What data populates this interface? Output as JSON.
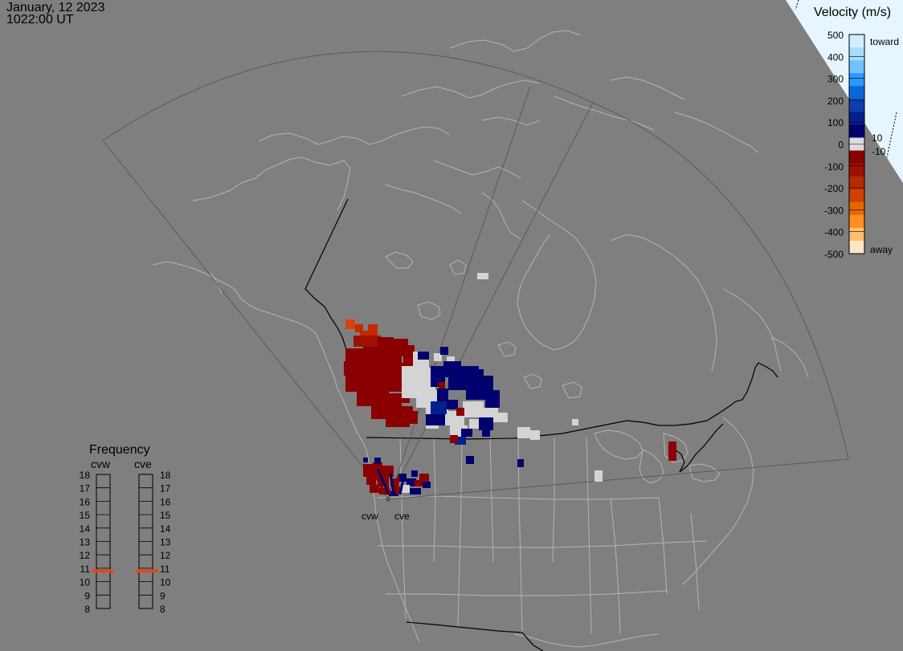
{
  "timestamp": {
    "date": "January, 12 2023",
    "time": "1022:00 UT"
  },
  "velocity_scale": {
    "title": "Velocity (m/s)",
    "ticks": [
      "500",
      "400",
      "300",
      "200",
      "100",
      "0",
      "-100",
      "-200",
      "-300",
      "-400",
      "-500"
    ],
    "toward_label": "toward",
    "away_label": "away",
    "near_zero_pos": "10",
    "near_zero_neg": "-10",
    "colors": [
      "#cfeeff",
      "#a7dcff",
      "#6fc2ff",
      "#2b99ff",
      "#0b66d9",
      "#0a3fb0",
      "#061f8f",
      "#00006e",
      "#dcdcdc",
      "#8a0000",
      "#a01000",
      "#b82a00",
      "#d04000",
      "#e86800",
      "#ff9020",
      "#ffc070",
      "#ffe6c8"
    ]
  },
  "frequency_panel": {
    "title": "Frequency",
    "radars": [
      "cvw",
      "cve"
    ],
    "ticks": [
      "18",
      "17",
      "16",
      "15",
      "14",
      "13",
      "12",
      "11",
      "10",
      "9",
      "8"
    ],
    "selected": {
      "cvw": 10.8,
      "cve": 10.8
    },
    "marker_color": "#e0481c"
  },
  "radar_sites": [
    "cvw",
    "cve"
  ],
  "colors": {
    "background": "#7f7f7f",
    "land_outline": "#b4b4b4",
    "border": "#000000",
    "fov": "#5a5a5a"
  }
}
